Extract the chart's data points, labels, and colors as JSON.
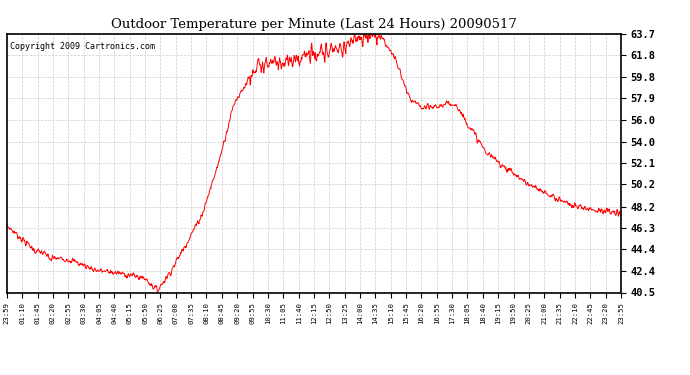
{
  "title": "Outdoor Temperature per Minute (Last 24 Hours) 20090517",
  "copyright": "Copyright 2009 Cartronics.com",
  "line_color": "#ff0000",
  "background_color": "#ffffff",
  "grid_color": "#cccccc",
  "yticks": [
    40.5,
    42.4,
    44.4,
    46.3,
    48.2,
    50.2,
    52.1,
    54.0,
    56.0,
    57.9,
    59.8,
    61.8,
    63.7
  ],
  "ymin": 40.5,
  "ymax": 63.7,
  "xtick_labels": [
    "23:59",
    "01:10",
    "01:45",
    "02:20",
    "02:55",
    "03:30",
    "04:05",
    "04:40",
    "05:15",
    "05:50",
    "06:25",
    "07:00",
    "07:35",
    "08:10",
    "08:45",
    "09:20",
    "09:55",
    "10:30",
    "11:05",
    "11:40",
    "12:15",
    "12:50",
    "13:25",
    "14:00",
    "14:35",
    "15:10",
    "15:45",
    "16:20",
    "16:55",
    "17:30",
    "18:05",
    "18:40",
    "19:15",
    "19:50",
    "20:25",
    "21:00",
    "21:35",
    "22:10",
    "22:45",
    "23:20",
    "23:55"
  ]
}
